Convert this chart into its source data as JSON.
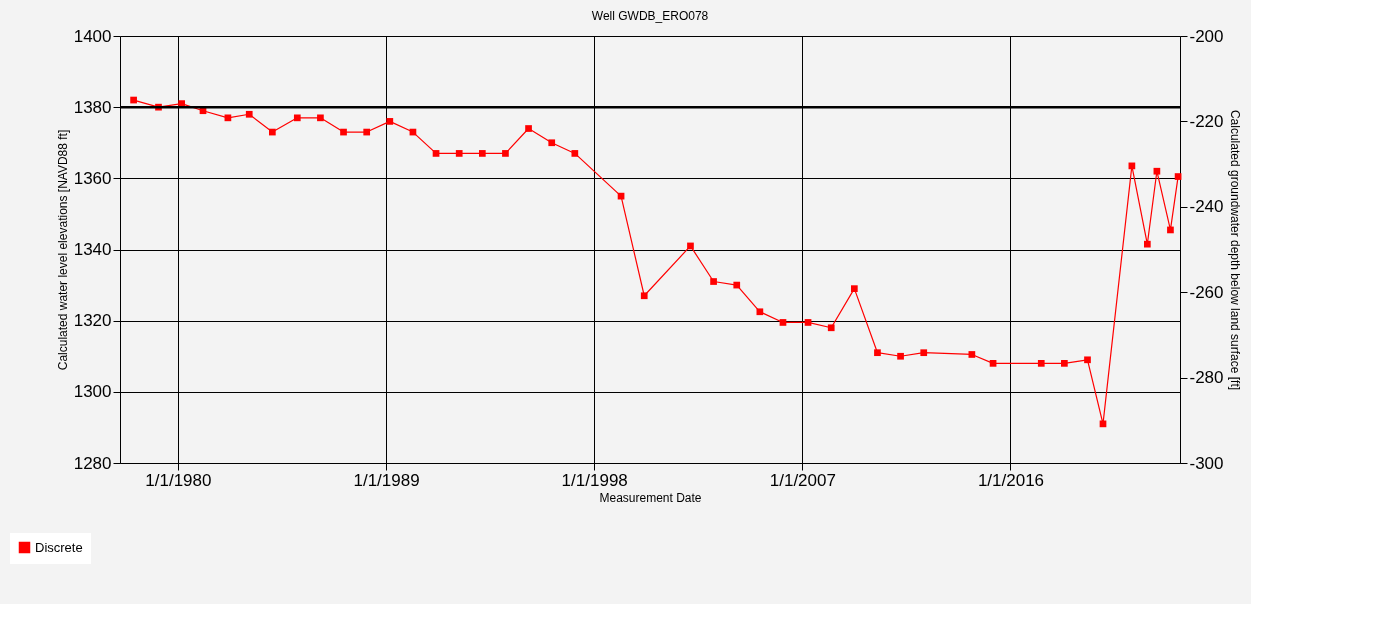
{
  "chart_data": {
    "type": "line",
    "title": "Well GWDB_ERO078",
    "xlabel": "Measurement Date",
    "ylabel": "Calculated water level elevations [NAVD88 ft]",
    "y2label": "Calculated groundwater depth below land surface [ft]",
    "x": [
      "1978-02",
      "1979-03",
      "1980-03",
      "1981-02",
      "1982-03",
      "1983-02",
      "1984-02",
      "1985-03",
      "1986-03",
      "1987-03",
      "1988-03",
      "1989-03",
      "1990-03",
      "1991-03",
      "1992-03",
      "1993-03",
      "1994-03",
      "1995-03",
      "1996-03",
      "1997-03",
      "1999-03",
      "2000-03",
      "2002-03",
      "2003-03",
      "2004-03",
      "2005-03",
      "2006-03",
      "2007-04",
      "2008-04",
      "2009-04",
      "2010-04",
      "2011-04",
      "2012-04",
      "2014-05",
      "2015-04",
      "2017-05",
      "2018-05",
      "2019-05",
      "2020-01",
      "2021-04",
      "2021-12",
      "2022-05",
      "2022-12",
      "2023-04"
    ],
    "series": [
      {
        "name": "Discrete",
        "color": "#ff0000",
        "values": [
          1382,
          1380,
          1381,
          1379,
          1377,
          1378,
          1373,
          1377,
          1377,
          1373,
          1373,
          1376,
          1373,
          1367,
          1367,
          1367,
          1367,
          1374,
          1370,
          1367,
          1355,
          1327,
          1341,
          1331,
          1330,
          1322.5,
          1319.5,
          1319.5,
          1318,
          1329,
          1311,
          1310,
          1311,
          1310.5,
          1308,
          1308,
          1308,
          1309,
          1291,
          1363.5,
          1341.5,
          1362,
          1345.5,
          1360.5
        ]
      }
    ],
    "xlim": [
      "1977-07-01",
      "2023-05-01"
    ],
    "xticks": [
      {
        "value": "1980-01-01",
        "label": "1/1/1980"
      },
      {
        "value": "1989-01-01",
        "label": "1/1/1989"
      },
      {
        "value": "1998-01-01",
        "label": "1/1/1998"
      },
      {
        "value": "2007-01-01",
        "label": "1/1/2007"
      },
      {
        "value": "2016-01-01",
        "label": "1/1/2016"
      }
    ],
    "ylim": [
      1280,
      1400
    ],
    "yticks": [
      1280,
      1300,
      1320,
      1340,
      1360,
      1380,
      1400
    ],
    "y2lim": [
      -300,
      -200
    ],
    "y2ticks": [
      -300,
      -280,
      -260,
      -240,
      -220,
      -200
    ],
    "ref_lines": [
      {
        "axis": "y",
        "value": 1380,
        "color": "#000000"
      }
    ],
    "grid": true,
    "legend": "bottom left",
    "marker": "square",
    "line_style": "solid"
  }
}
